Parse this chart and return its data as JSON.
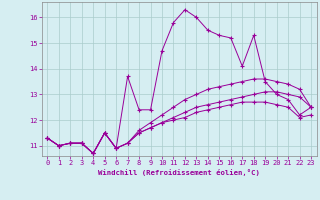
{
  "xlabel": "Windchill (Refroidissement éolien,°C)",
  "ylabel": "",
  "background_color": "#d6eef2",
  "grid_color": "#aacccc",
  "line_color": "#990099",
  "xmin": -0.5,
  "xmax": 23.5,
  "ymin": 10.6,
  "ymax": 16.6,
  "yticks": [
    11,
    12,
    13,
    14,
    15,
    16
  ],
  "xticks": [
    0,
    1,
    2,
    3,
    4,
    5,
    6,
    7,
    8,
    9,
    10,
    11,
    12,
    13,
    14,
    15,
    16,
    17,
    18,
    19,
    20,
    21,
    22,
    23
  ],
  "series": [
    [
      11.3,
      11.0,
      11.1,
      11.1,
      10.7,
      11.5,
      10.9,
      13.7,
      12.4,
      12.4,
      14.7,
      15.8,
      16.3,
      16.0,
      15.5,
      15.3,
      15.2,
      14.1,
      15.3,
      13.5,
      13.0,
      12.8,
      12.2,
      12.5
    ],
    [
      11.3,
      11.0,
      11.1,
      11.1,
      10.7,
      11.5,
      10.9,
      11.1,
      11.5,
      11.7,
      11.9,
      12.1,
      12.3,
      12.5,
      12.6,
      12.7,
      12.8,
      12.9,
      13.0,
      13.1,
      13.1,
      13.0,
      12.9,
      12.5
    ],
    [
      11.3,
      11.0,
      11.1,
      11.1,
      10.7,
      11.5,
      10.9,
      11.1,
      11.5,
      11.7,
      11.9,
      12.0,
      12.1,
      12.3,
      12.4,
      12.5,
      12.6,
      12.7,
      12.7,
      12.7,
      12.6,
      12.5,
      12.1,
      12.2
    ],
    [
      11.3,
      11.0,
      11.1,
      11.1,
      10.7,
      11.5,
      10.9,
      11.1,
      11.6,
      11.9,
      12.2,
      12.5,
      12.8,
      13.0,
      13.2,
      13.3,
      13.4,
      13.5,
      13.6,
      13.6,
      13.5,
      13.4,
      13.2,
      12.5
    ]
  ]
}
